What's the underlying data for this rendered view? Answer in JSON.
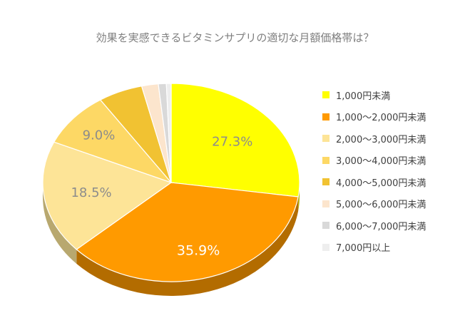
{
  "chart_data": {
    "type": "pie",
    "title": "効果を実感できるビタミンサプリの適切な月額価格帯は？",
    "slices": [
      {
        "name": "1,000円未満",
        "value": 27.3,
        "label": "27.3%",
        "color": "#ffff00",
        "side": "#b3b300"
      },
      {
        "name": "1,000～2,000円未満",
        "value": 35.9,
        "label": "35.9%",
        "color": "#ff9a00",
        "side": "#b36c00"
      },
      {
        "name": "2,000～3,000円未満",
        "value": 18.5,
        "label": "18.5%",
        "color": "#fde497",
        "side": "#b8a86f"
      },
      {
        "name": "3,000～4,000円未満",
        "value": 9.0,
        "label": "9.0%",
        "color": "#fdd865",
        "side": "#b39a48"
      },
      {
        "name": "4,000～5,000円未満",
        "value": 5.6,
        "label": "",
        "color": "#f1c232",
        "side": "#ab8a24"
      },
      {
        "name": "5,000～6,000円未満",
        "value": 2.1,
        "label": "",
        "color": "#fce5cd",
        "side": "#b3a392"
      },
      {
        "name": "6,000～7,000円未満",
        "value": 1.0,
        "label": "",
        "color": "#d9d9d9",
        "side": "#999999"
      },
      {
        "name": "7,000円以上",
        "value": 0.6,
        "label": "",
        "color": "#eeeeee",
        "side": "#a9a9a9"
      }
    ],
    "legend_position": "right"
  }
}
